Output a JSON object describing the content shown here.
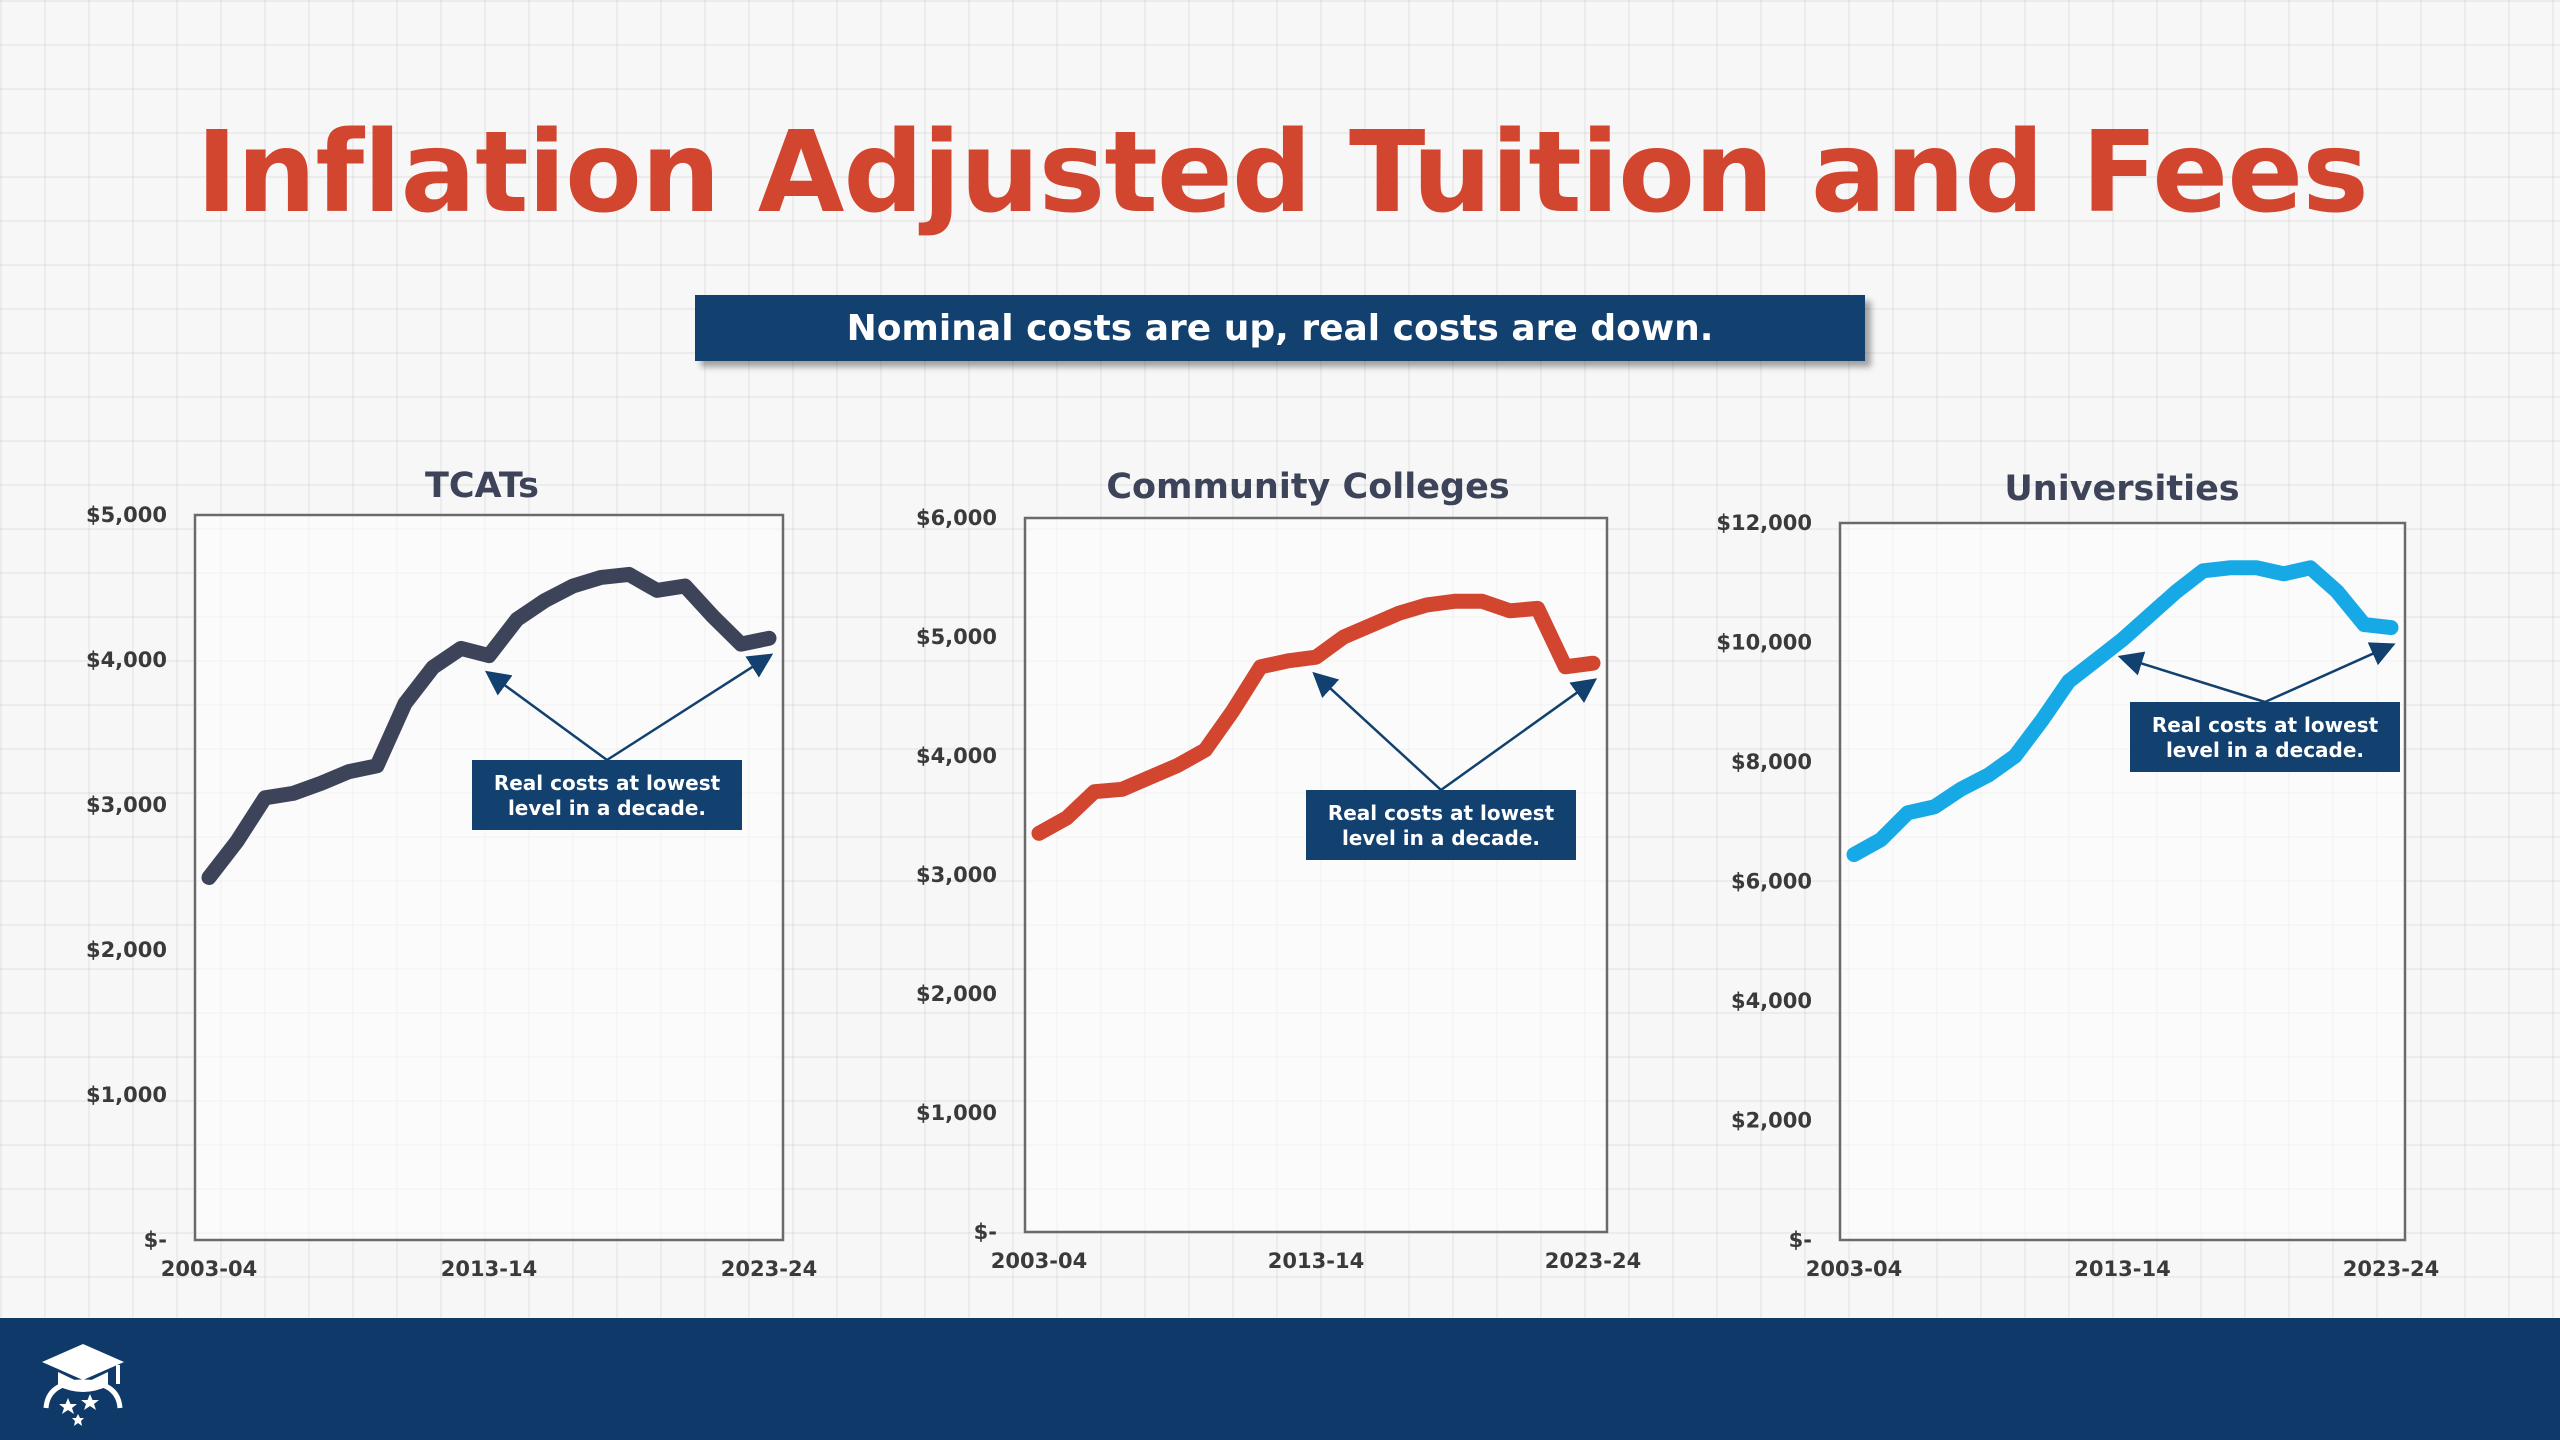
{
  "page": {
    "title": "Inflation Adjusted Tuition and Fees",
    "subtitle": "Nominal costs are up, real costs are down."
  },
  "colors": {
    "title": "#d2452f",
    "banner": "#12406f",
    "footer": "#0f3968",
    "annotation_bg": "#12406f"
  },
  "icons": {
    "footer_logo": "graduation-cap-stars-icon"
  },
  "chart_data": [
    {
      "type": "line",
      "title": "TCATs",
      "color": "#3d4359",
      "categories": [
        "2003-04",
        "2004-05",
        "2005-06",
        "2006-07",
        "2007-08",
        "2008-09",
        "2009-10",
        "2010-11",
        "2011-12",
        "2012-13",
        "2013-14",
        "2014-15",
        "2015-16",
        "2016-17",
        "2017-18",
        "2018-19",
        "2019-20",
        "2020-21",
        "2021-22",
        "2022-23",
        "2023-24"
      ],
      "x_tick_labels": [
        "2003-04",
        "2013-14",
        "2023-24"
      ],
      "values": [
        2500,
        2750,
        3050,
        3080,
        3150,
        3230,
        3270,
        3700,
        3950,
        4080,
        4030,
        4280,
        4410,
        4510,
        4570,
        4590,
        4480,
        4510,
        4300,
        4110,
        4150
      ],
      "ylim": [
        0,
        5000
      ],
      "y_ticks": [
        0,
        1000,
        2000,
        3000,
        4000,
        5000
      ],
      "y_tick_labels": [
        "$-",
        "$1,000",
        "$2,000",
        "$3,000",
        "$4,000",
        "$5,000"
      ],
      "annotation": "Real costs at lowest level in a decade."
    },
    {
      "type": "line",
      "title": "Community Colleges",
      "color": "#d2452f",
      "categories": [
        "2003-04",
        "2004-05",
        "2005-06",
        "2006-07",
        "2007-08",
        "2008-09",
        "2009-10",
        "2010-11",
        "2011-12",
        "2012-13",
        "2013-14",
        "2014-15",
        "2015-16",
        "2016-17",
        "2017-18",
        "2018-19",
        "2019-20",
        "2020-21",
        "2021-22",
        "2022-23",
        "2023-24"
      ],
      "x_tick_labels": [
        "2003-04",
        "2013-14",
        "2023-24"
      ],
      "values": [
        3350,
        3480,
        3700,
        3720,
        3820,
        3920,
        4050,
        4380,
        4750,
        4800,
        4830,
        5000,
        5100,
        5200,
        5270,
        5300,
        5300,
        5220,
        5240,
        4750,
        4780
      ],
      "ylim": [
        0,
        6000
      ],
      "y_ticks": [
        0,
        1000,
        2000,
        3000,
        4000,
        5000,
        6000
      ],
      "y_tick_labels": [
        "$-",
        "$1,000",
        "$2,000",
        "$3,000",
        "$4,000",
        "$5,000",
        "$6,000"
      ],
      "annotation": "Real costs at lowest level in a decade."
    },
    {
      "type": "line",
      "title": "Universities",
      "color": "#17a9e6",
      "categories": [
        "2003-04",
        "2004-05",
        "2005-06",
        "2006-07",
        "2007-08",
        "2008-09",
        "2009-10",
        "2010-11",
        "2011-12",
        "2012-13",
        "2013-14",
        "2014-15",
        "2015-16",
        "2016-17",
        "2017-18",
        "2018-19",
        "2019-20",
        "2020-21",
        "2021-22",
        "2022-23",
        "2023-24"
      ],
      "x_tick_labels": [
        "2003-04",
        "2013-14",
        "2023-24"
      ],
      "values": [
        6450,
        6700,
        7150,
        7250,
        7550,
        7780,
        8100,
        8700,
        9350,
        9700,
        10050,
        10450,
        10850,
        11200,
        11250,
        11250,
        11150,
        11250,
        10850,
        10300,
        10250
      ],
      "ylim": [
        0,
        12000
      ],
      "y_ticks": [
        0,
        2000,
        4000,
        6000,
        8000,
        10000,
        12000
      ],
      "y_tick_labels": [
        "$-",
        "$2,000",
        "$4,000",
        "$6,000",
        "$8,000",
        "$10,000",
        "$12,000"
      ],
      "annotation": "Real costs at lowest level in a decade."
    }
  ]
}
